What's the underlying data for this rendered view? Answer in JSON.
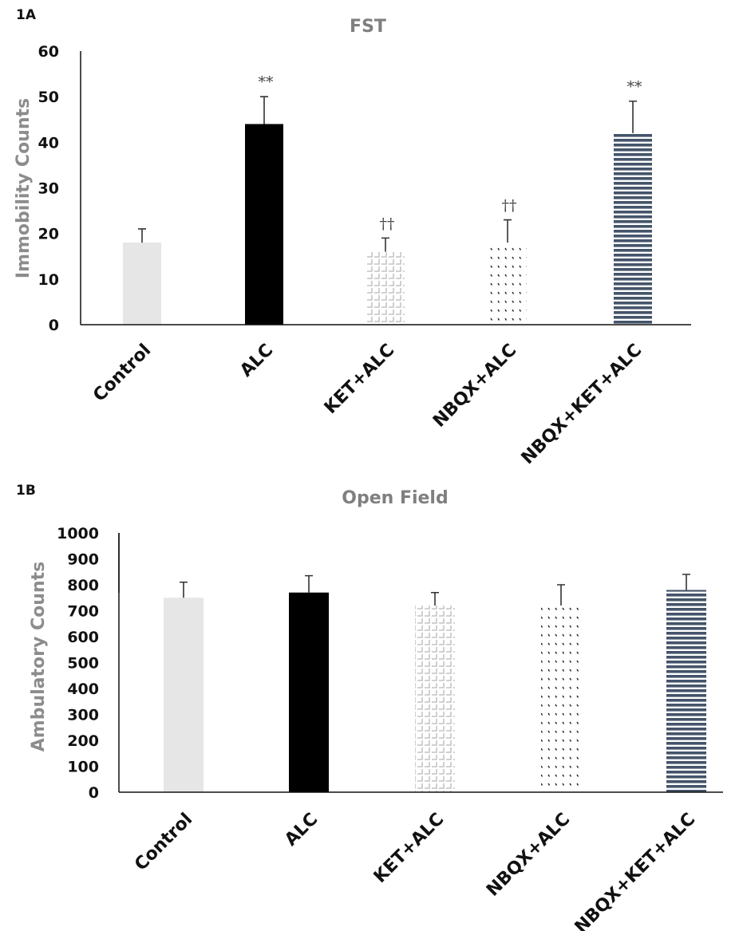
{
  "chart_data": [
    {
      "type": "bar",
      "panel_label": "1A",
      "title": "FST",
      "xlabel": "",
      "ylabel": "Immobility Counts",
      "ylim": [
        0,
        60
      ],
      "yticks": [
        0,
        10,
        20,
        30,
        40,
        50,
        60
      ],
      "grid": false,
      "categories": [
        "Control",
        "ALC",
        "KET+ALC",
        "NBQX+ALC",
        "NBQX+KET+ALC"
      ],
      "values": [
        18,
        44,
        16,
        18,
        42
      ],
      "errors": [
        3,
        6,
        3,
        5,
        7
      ],
      "annotations": [
        "",
        "**",
        "††",
        "††",
        "**"
      ],
      "fills": [
        "solid-light-gray",
        "solid-black",
        "square-grid-gray",
        "dash-dots-black",
        "horizontal-stripes-navy"
      ],
      "colors": [
        "#e6e6e6",
        "#000000",
        "#c8c8c8",
        "#222222",
        "#44546a"
      ]
    },
    {
      "type": "bar",
      "panel_label": "1B",
      "title": "Open Field",
      "xlabel": "",
      "ylabel": "Ambulatory Counts",
      "ylim": [
        0,
        1000
      ],
      "yticks": [
        0,
        100,
        200,
        300,
        400,
        500,
        600,
        700,
        800,
        900,
        1000
      ],
      "grid": false,
      "categories": [
        "Control",
        "ALC",
        "KET+ALC",
        "NBQX+ALC",
        "NBQX+KET+ALC"
      ],
      "values": [
        750,
        770,
        720,
        720,
        780
      ],
      "errors": [
        60,
        65,
        50,
        80,
        60
      ],
      "annotations": [
        "",
        "",
        "",
        "",
        ""
      ],
      "fills": [
        "solid-light-gray",
        "solid-black",
        "square-grid-gray",
        "dash-dots-black",
        "horizontal-stripes-navy"
      ],
      "colors": [
        "#e6e6e6",
        "#000000",
        "#c8c8c8",
        "#222222",
        "#44546a"
      ]
    }
  ]
}
